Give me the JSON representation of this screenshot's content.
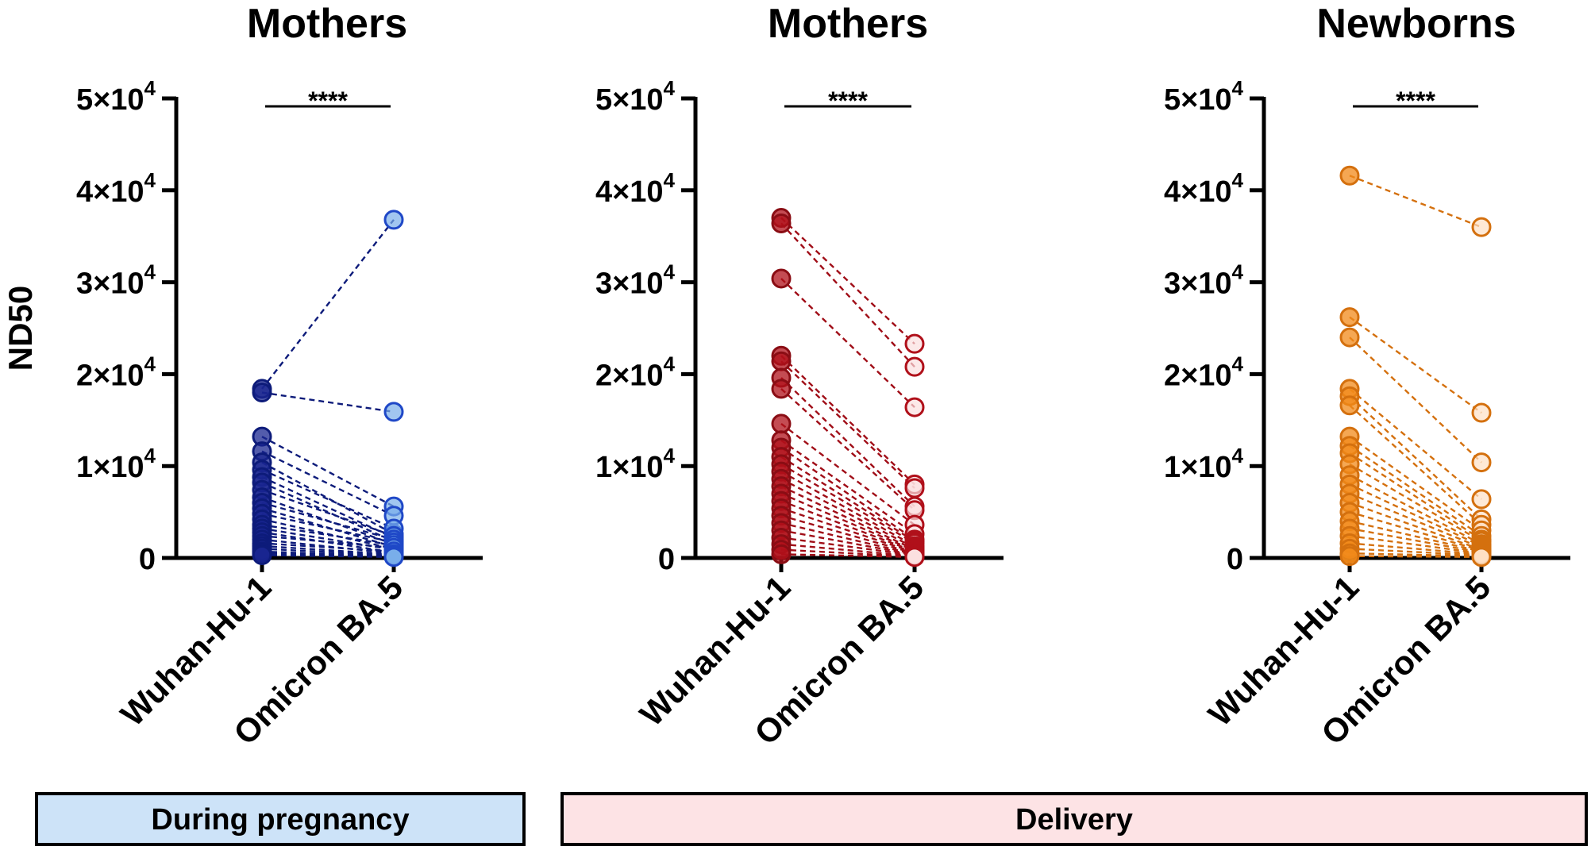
{
  "chart_data": [
    {
      "type": "scatter",
      "style": "paired before-after",
      "title": "Mothers",
      "ylabel": "ND50",
      "categories": [
        "Wuhan-Hu-1",
        "Omicron BA.5"
      ],
      "ylim": [
        0,
        50000
      ],
      "yticks": [
        "0",
        "1×10",
        "2×10",
        "3×10",
        "4×10",
        "5×10"
      ],
      "ytick_exponent": "4",
      "significance": "****",
      "colors": {
        "left_fill": "#1a2690",
        "left_stroke": "#0d1b7a",
        "right_fill": "#79aeea",
        "right_stroke": "#1f48c7",
        "line": "#0d1b7a"
      },
      "pairs": [
        [
          18400,
          36800
        ],
        [
          18000,
          15900
        ],
        [
          13200,
          5600
        ],
        [
          11600,
          4600
        ],
        [
          10400,
          2600
        ],
        [
          9600,
          3200
        ],
        [
          8800,
          2200
        ],
        [
          8200,
          1800
        ],
        [
          7400,
          2400
        ],
        [
          6600,
          1500
        ],
        [
          6000,
          2000
        ],
        [
          5400,
          1200
        ],
        [
          4800,
          1700
        ],
        [
          4200,
          1000
        ],
        [
          3600,
          1400
        ],
        [
          3200,
          900
        ],
        [
          2800,
          600
        ],
        [
          2400,
          1100
        ],
        [
          2000,
          500
        ],
        [
          1600,
          700
        ],
        [
          1300,
          400
        ],
        [
          1000,
          300
        ],
        [
          700,
          200
        ],
        [
          500,
          150
        ],
        [
          300,
          100
        ]
      ]
    },
    {
      "type": "scatter",
      "style": "paired before-after",
      "title": "Mothers",
      "ylabel": "",
      "categories": [
        "Wuhan-Hu-1",
        "Omicron BA.5"
      ],
      "ylim": [
        0,
        50000
      ],
      "yticks": [
        "0",
        "1×10",
        "2×10",
        "3×10",
        "4×10",
        "5×10"
      ],
      "ytick_exponent": "4",
      "significance": "****",
      "colors": {
        "left_fill": "#b0101a",
        "left_stroke": "#8a0d14",
        "right_fill": "#fbe0e0",
        "right_stroke": "#b0101a",
        "line": "#a00d17"
      },
      "pairs": [
        [
          37000,
          23300
        ],
        [
          36400,
          20800
        ],
        [
          30400,
          16400
        ],
        [
          22000,
          8000
        ],
        [
          21400,
          7600
        ],
        [
          19600,
          5600
        ],
        [
          18400,
          5200
        ],
        [
          14600,
          3600
        ],
        [
          12800,
          2600
        ],
        [
          12000,
          2000
        ],
        [
          11000,
          1800
        ],
        [
          10200,
          1600
        ],
        [
          9400,
          1300
        ],
        [
          8600,
          1100
        ],
        [
          7800,
          900
        ],
        [
          7000,
          800
        ],
        [
          6200,
          700
        ],
        [
          5400,
          600
        ],
        [
          4600,
          500
        ],
        [
          3800,
          400
        ],
        [
          3000,
          350
        ],
        [
          2200,
          300
        ],
        [
          1500,
          200
        ],
        [
          900,
          150
        ],
        [
          400,
          100
        ]
      ]
    },
    {
      "type": "scatter",
      "style": "paired before-after",
      "title": "Newborns",
      "ylabel": "",
      "categories": [
        "Wuhan-Hu-1",
        "Omicron BA.5"
      ],
      "ylim": [
        0,
        50000
      ],
      "yticks": [
        "0",
        "1×10",
        "2×10",
        "3×10",
        "4×10",
        "5×10"
      ],
      "ytick_exponent": "4",
      "significance": "****",
      "colors": {
        "left_fill": "#f28a1a",
        "left_stroke": "#d4700e",
        "right_fill": "#fde0c4",
        "right_stroke": "#d4700e",
        "line": "#d4700e"
      },
      "pairs": [
        [
          41600,
          36000
        ],
        [
          26200,
          15800
        ],
        [
          24000,
          10400
        ],
        [
          18400,
          6400
        ],
        [
          17600,
          4200
        ],
        [
          16600,
          3600
        ],
        [
          13200,
          3000
        ],
        [
          12200,
          2400
        ],
        [
          11400,
          2000
        ],
        [
          10200,
          1800
        ],
        [
          9000,
          1500
        ],
        [
          8000,
          1300
        ],
        [
          7000,
          1100
        ],
        [
          6000,
          900
        ],
        [
          5000,
          800
        ],
        [
          4000,
          700
        ],
        [
          3200,
          600
        ],
        [
          2400,
          500
        ],
        [
          1600,
          400
        ],
        [
          1000,
          300
        ],
        [
          500,
          200
        ],
        [
          200,
          100
        ]
      ]
    }
  ],
  "groups": [
    {
      "label": "During pregnancy",
      "color": "#cde3f8"
    },
    {
      "label": "Delivery",
      "color": "#fde3e5"
    }
  ]
}
